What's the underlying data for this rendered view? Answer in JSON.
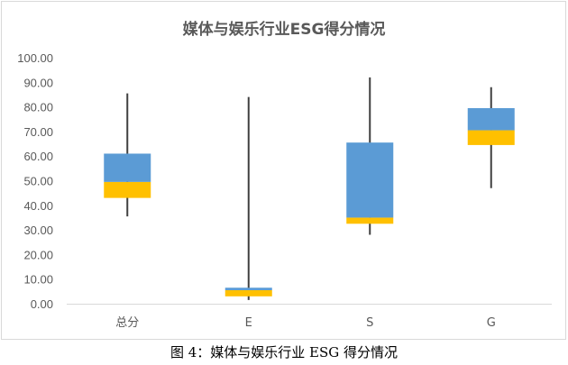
{
  "caption": "图 4：媒体与娱乐行业 ESG 得分情况",
  "chart_data": {
    "type": "box",
    "title": "媒体与娱乐行业ESG得分情况",
    "xlabel": "",
    "ylabel": "",
    "ylim": [
      0,
      100
    ],
    "y_ticks": [
      "0.00",
      "10.00",
      "20.00",
      "30.00",
      "40.00",
      "50.00",
      "60.00",
      "70.00",
      "80.00",
      "90.00",
      "100.00"
    ],
    "grid": false,
    "legend": "none",
    "categories": [
      "总分",
      "E",
      "S",
      "G"
    ],
    "series": [
      {
        "min": 35.5,
        "q1": 43.0,
        "median": 49.5,
        "q3": 61.0,
        "max": 85.5
      },
      {
        "min": 1.5,
        "q1": 3.0,
        "median": 5.5,
        "q3": 6.5,
        "max": 84.0
      },
      {
        "min": 28.0,
        "q1": 32.5,
        "median": 35.0,
        "q3": 65.5,
        "max": 92.0
      },
      {
        "min": 47.0,
        "q1": 64.5,
        "median": 70.5,
        "q3": 79.5,
        "max": 88.0
      }
    ],
    "colors": {
      "lower_box": "#ffc000",
      "upper_box": "#5b9bd5",
      "whisker": "#404040",
      "axis": "#d9d9d9",
      "text": "#595959"
    }
  }
}
